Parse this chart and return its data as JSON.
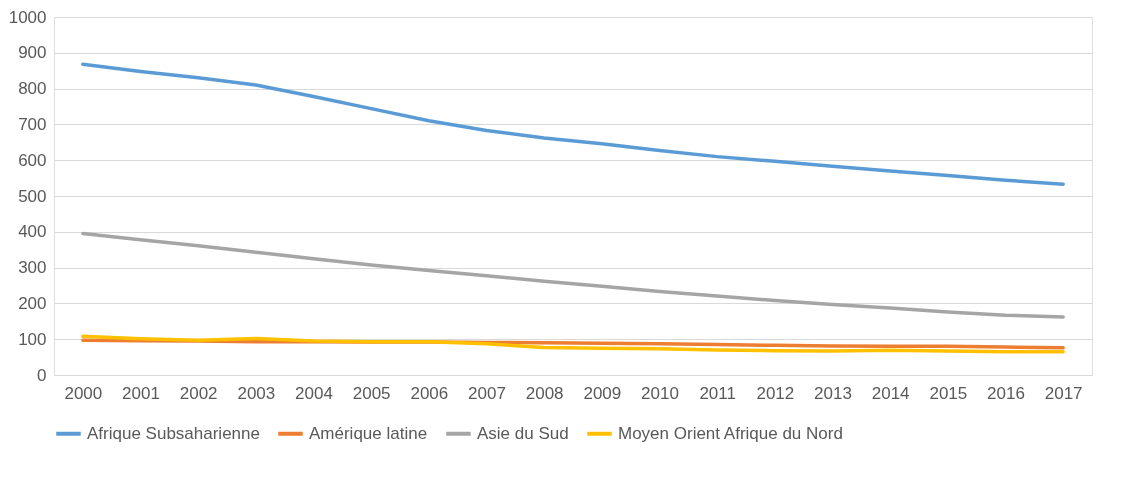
{
  "chart_data": {
    "type": "line",
    "categories": [
      "2000",
      "2001",
      "2002",
      "2003",
      "2004",
      "2005",
      "2006",
      "2007",
      "2008",
      "2009",
      "2010",
      "2011",
      "2012",
      "2013",
      "2014",
      "2015",
      "2016",
      "2017"
    ],
    "series": [
      {
        "name": "Afrique Subsaharienne",
        "color": "#5b9bd5",
        "values": [
          868,
          848,
          830,
          810,
          778,
          744,
          710,
          683,
          662,
          646,
          627,
          610,
          597,
          583,
          570,
          557,
          544,
          533
        ]
      },
      {
        "name": "Amérique latine",
        "color": "#ed7d31",
        "values": [
          97,
          96,
          95,
          93,
          93,
          92,
          92,
          91,
          90,
          89,
          87,
          85,
          83,
          81,
          80,
          80,
          78,
          76
        ]
      },
      {
        "name": "Asie du Sud",
        "color": "#a5a5a5",
        "values": [
          395,
          378,
          361,
          343,
          325,
          307,
          292,
          277,
          262,
          248,
          233,
          221,
          208,
          197,
          187,
          176,
          167,
          162
        ]
      },
      {
        "name": "Moyen Orient Afrique du Nord",
        "color": "#ffc000",
        "values": [
          108,
          101,
          97,
          102,
          95,
          93,
          93,
          87,
          77,
          75,
          73,
          70,
          68,
          67,
          69,
          67,
          65,
          65
        ]
      }
    ],
    "ylim": [
      0,
      1000
    ],
    "yticks": [
      0,
      100,
      200,
      300,
      400,
      500,
      600,
      700,
      800,
      900,
      1000
    ],
    "grid": "y",
    "legend": "bottom",
    "marker": "none",
    "line_style": "solid"
  }
}
